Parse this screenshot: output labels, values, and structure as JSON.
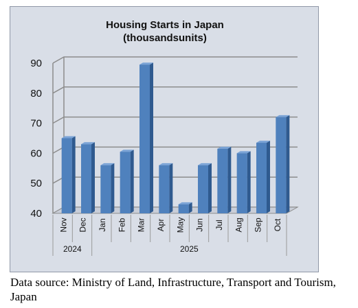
{
  "caption": "Data source: Ministry of Land, Infrastructure, Transport and Tourism, Japan",
  "chart_data": {
    "type": "bar",
    "title": "Housing Starts in Japan",
    "subtitle": "(thousandsunits)",
    "categories": [
      "Nov",
      "Dec",
      "Jan",
      "Feb",
      "Mar",
      "Apr",
      "May",
      "Jun",
      "Jul",
      "Aug",
      "Sep",
      "Oct"
    ],
    "values": [
      65,
      63,
      56,
      60.5,
      89.5,
      56,
      43,
      56,
      61.5,
      60,
      63.5,
      72
    ],
    "year_groups": [
      {
        "label": "2024",
        "count": 2
      },
      {
        "label": "2025",
        "count": 10
      }
    ],
    "ylim": [
      40,
      90
    ],
    "yticks": [
      40,
      50,
      60,
      70,
      80,
      90
    ],
    "grid": true,
    "bar_color": "#4f81bd",
    "bar_side_color": "#2f5a8f",
    "bar_top_color": "#7aa3d6"
  }
}
